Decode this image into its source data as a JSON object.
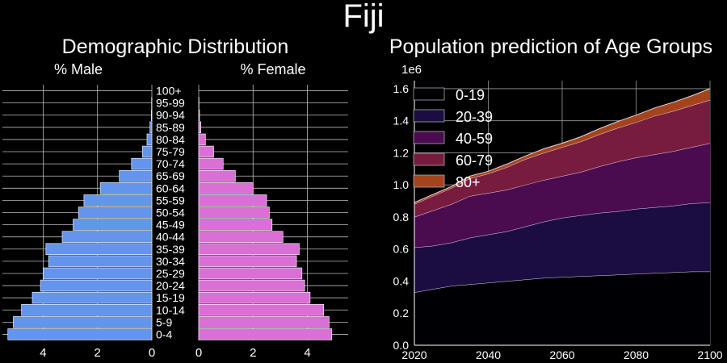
{
  "title": "Fiji",
  "chart_data": [
    {
      "type": "bar",
      "title": "Demographic Distribution",
      "orientation": "horizontal",
      "left_label": "% Male",
      "right_label": "% Female",
      "categories": [
        "0-4",
        "5-9",
        "10-14",
        "15-19",
        "20-24",
        "25-29",
        "30-34",
        "35-39",
        "40-44",
        "45-49",
        "50-54",
        "55-59",
        "60-64",
        "65-69",
        "70-74",
        "75-79",
        "80-84",
        "85-89",
        "90-94",
        "95-99",
        "100+"
      ],
      "series": [
        {
          "name": "% Male",
          "values": [
            5.3,
            5.1,
            4.8,
            4.4,
            4.1,
            4.0,
            3.8,
            3.9,
            3.3,
            2.9,
            2.7,
            2.5,
            1.9,
            1.2,
            0.75,
            0.35,
            0.18,
            0.07,
            0.02,
            0.01,
            0.0
          ],
          "color": "#6495ed"
        },
        {
          "name": "% Female",
          "values": [
            4.9,
            4.8,
            4.6,
            4.1,
            3.9,
            3.8,
            3.6,
            3.7,
            3.1,
            2.7,
            2.6,
            2.5,
            2.0,
            1.35,
            0.9,
            0.55,
            0.25,
            0.08,
            0.03,
            0.01,
            0.0
          ],
          "color": "#da70d6"
        }
      ],
      "xlim": [
        0,
        5.5
      ],
      "xticks": [
        0,
        2,
        4
      ],
      "grid": true
    },
    {
      "type": "area",
      "title": "Population prediction of Age Groups",
      "scale_label": "1e6",
      "x": [
        2020,
        2025,
        2030,
        2035,
        2040,
        2045,
        2050,
        2055,
        2060,
        2065,
        2070,
        2075,
        2080,
        2085,
        2090,
        2095,
        2100
      ],
      "series": [
        {
          "name": "0-19",
          "values": [
            0.33,
            0.35,
            0.37,
            0.38,
            0.39,
            0.4,
            0.41,
            0.42,
            0.425,
            0.43,
            0.435,
            0.44,
            0.445,
            0.45,
            0.455,
            0.46,
            0.46
          ],
          "color": "#000004"
        },
        {
          "name": "20-39",
          "values": [
            0.28,
            0.27,
            0.27,
            0.29,
            0.3,
            0.31,
            0.33,
            0.35,
            0.37,
            0.38,
            0.39,
            0.395,
            0.405,
            0.41,
            0.415,
            0.425,
            0.43
          ],
          "color": "#1b0c41"
        },
        {
          "name": "40-59",
          "values": [
            0.19,
            0.22,
            0.24,
            0.26,
            0.26,
            0.26,
            0.26,
            0.26,
            0.26,
            0.27,
            0.29,
            0.31,
            0.32,
            0.33,
            0.34,
            0.35,
            0.37
          ],
          "color": "#4a0c4e"
        },
        {
          "name": "60-79",
          "values": [
            0.08,
            0.09,
            0.1,
            0.11,
            0.12,
            0.14,
            0.16,
            0.17,
            0.18,
            0.19,
            0.2,
            0.21,
            0.22,
            0.24,
            0.25,
            0.26,
            0.27
          ],
          "color": "#781c3f"
        },
        {
          "name": "80+",
          "values": [
            0.01,
            0.01,
            0.01,
            0.015,
            0.015,
            0.02,
            0.02,
            0.025,
            0.025,
            0.03,
            0.035,
            0.04,
            0.045,
            0.05,
            0.055,
            0.06,
            0.07
          ],
          "color": "#a5441c"
        }
      ],
      "xlim": [
        2020,
        2100
      ],
      "ylim": [
        0,
        1.65
      ],
      "xticks": [
        2020,
        2040,
        2060,
        2080,
        2100
      ],
      "yticks": [
        0.0,
        0.2,
        0.4,
        0.6,
        0.8,
        1.0,
        1.2,
        1.4,
        1.6
      ],
      "stacked": true,
      "grid": true,
      "legend": "top-left"
    }
  ]
}
